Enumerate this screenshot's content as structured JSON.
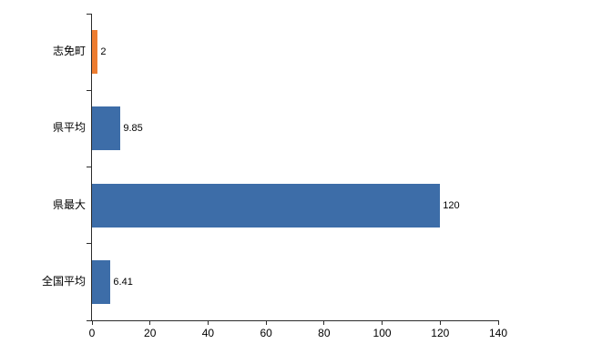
{
  "chart_data": {
    "type": "bar",
    "orientation": "horizontal",
    "title": "",
    "xlabel": "",
    "ylabel": "",
    "categories": [
      "志免町",
      "県平均",
      "県最大",
      "全国平均"
    ],
    "values": [
      2,
      9.85,
      120,
      6.41
    ],
    "value_labels": [
      "2",
      "9.85",
      "120",
      "6.41"
    ],
    "bar_colors": [
      "#ed7d31",
      "#3d6da8",
      "#3d6da8",
      "#3d6da8"
    ],
    "xlim": [
      0,
      140
    ],
    "x_ticks": [
      0,
      20,
      40,
      60,
      80,
      100,
      120,
      140
    ],
    "grid": false,
    "legend": "none"
  },
  "colors": {
    "axis": "#2b2b2b",
    "bar_blue": "#3d6da8",
    "bar_orange": "#ed7d31",
    "background": "#ffffff"
  }
}
